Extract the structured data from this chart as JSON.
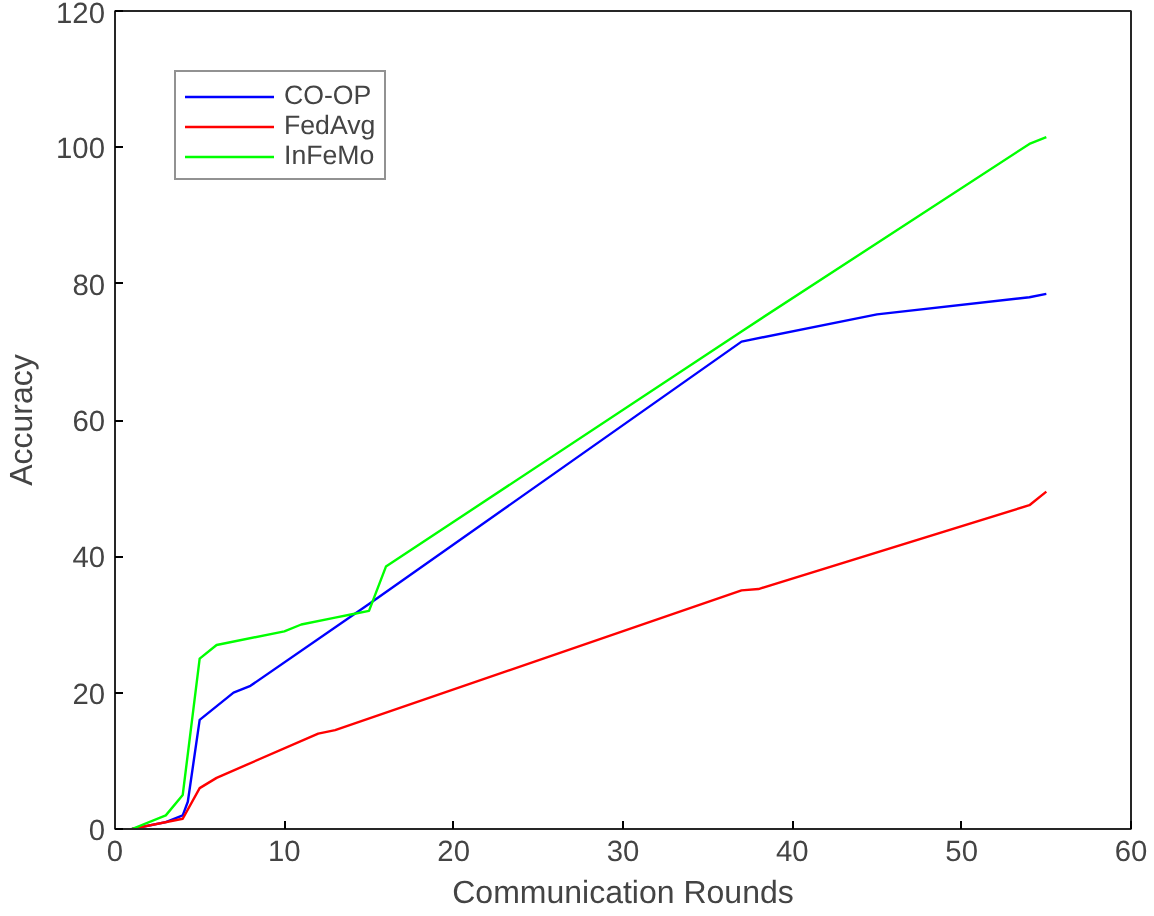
{
  "chart_data": {
    "type": "line",
    "xlabel": "Communication Rounds",
    "ylabel": "Accuracy",
    "xlim": [
      0,
      60
    ],
    "xticks": [
      0,
      10,
      20,
      30,
      40,
      50,
      60
    ],
    "ylim": [
      0,
      120
    ],
    "yticks": [
      0,
      20,
      40,
      60,
      80,
      100,
      120
    ],
    "grid": false,
    "legend": "top left",
    "marker": "none",
    "line_style": "solid",
    "series": [
      {
        "name": "CO-OP",
        "color": "#0000ff",
        "x": [
          1,
          3,
          4,
          4.3,
          5,
          7,
          8,
          15,
          37,
          45,
          54,
          55
        ],
        "values": [
          0,
          1,
          2,
          4,
          16,
          20,
          21,
          33,
          71.5,
          75.5,
          78,
          78.5
        ]
      },
      {
        "name": "FedAvg",
        "color": "#ff0000",
        "x": [
          1,
          4,
          5,
          6,
          12,
          13,
          37,
          38,
          54,
          55
        ],
        "values": [
          0,
          1.5,
          6,
          7.5,
          14,
          14.5,
          35,
          35.2,
          47.5,
          49.5
        ]
      },
      {
        "name": "InFeMo",
        "color": "#00ff00",
        "x": [
          1,
          3,
          4,
          5,
          6,
          10,
          11,
          13,
          14,
          15,
          16,
          37,
          54,
          55
        ],
        "values": [
          0,
          2,
          5,
          25,
          27,
          29,
          30,
          31,
          31.5,
          32,
          38.5,
          73,
          100.5,
          101.5
        ]
      }
    ]
  }
}
